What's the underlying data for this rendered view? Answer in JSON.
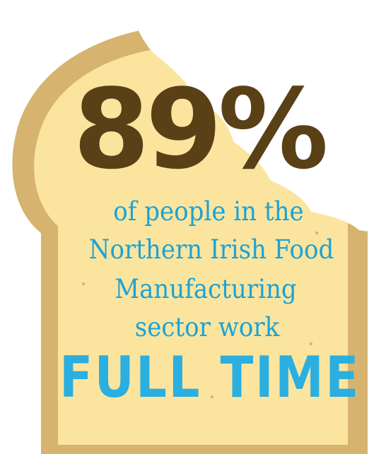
{
  "colors": {
    "crust": "#d6b46f",
    "crust_shadow": "#c7a35b",
    "bread": "#fbe59e",
    "headline": "#5a4016",
    "body_text": "#1ca3d6",
    "emphasis": "#2baee0"
  },
  "headline": "89%",
  "body_lines": [
    "of people in the",
    "Northern Irish Food",
    "Manufacturing",
    "sector work"
  ],
  "emphasis": "FULL TIME",
  "icon": "bitten-bread-slice"
}
